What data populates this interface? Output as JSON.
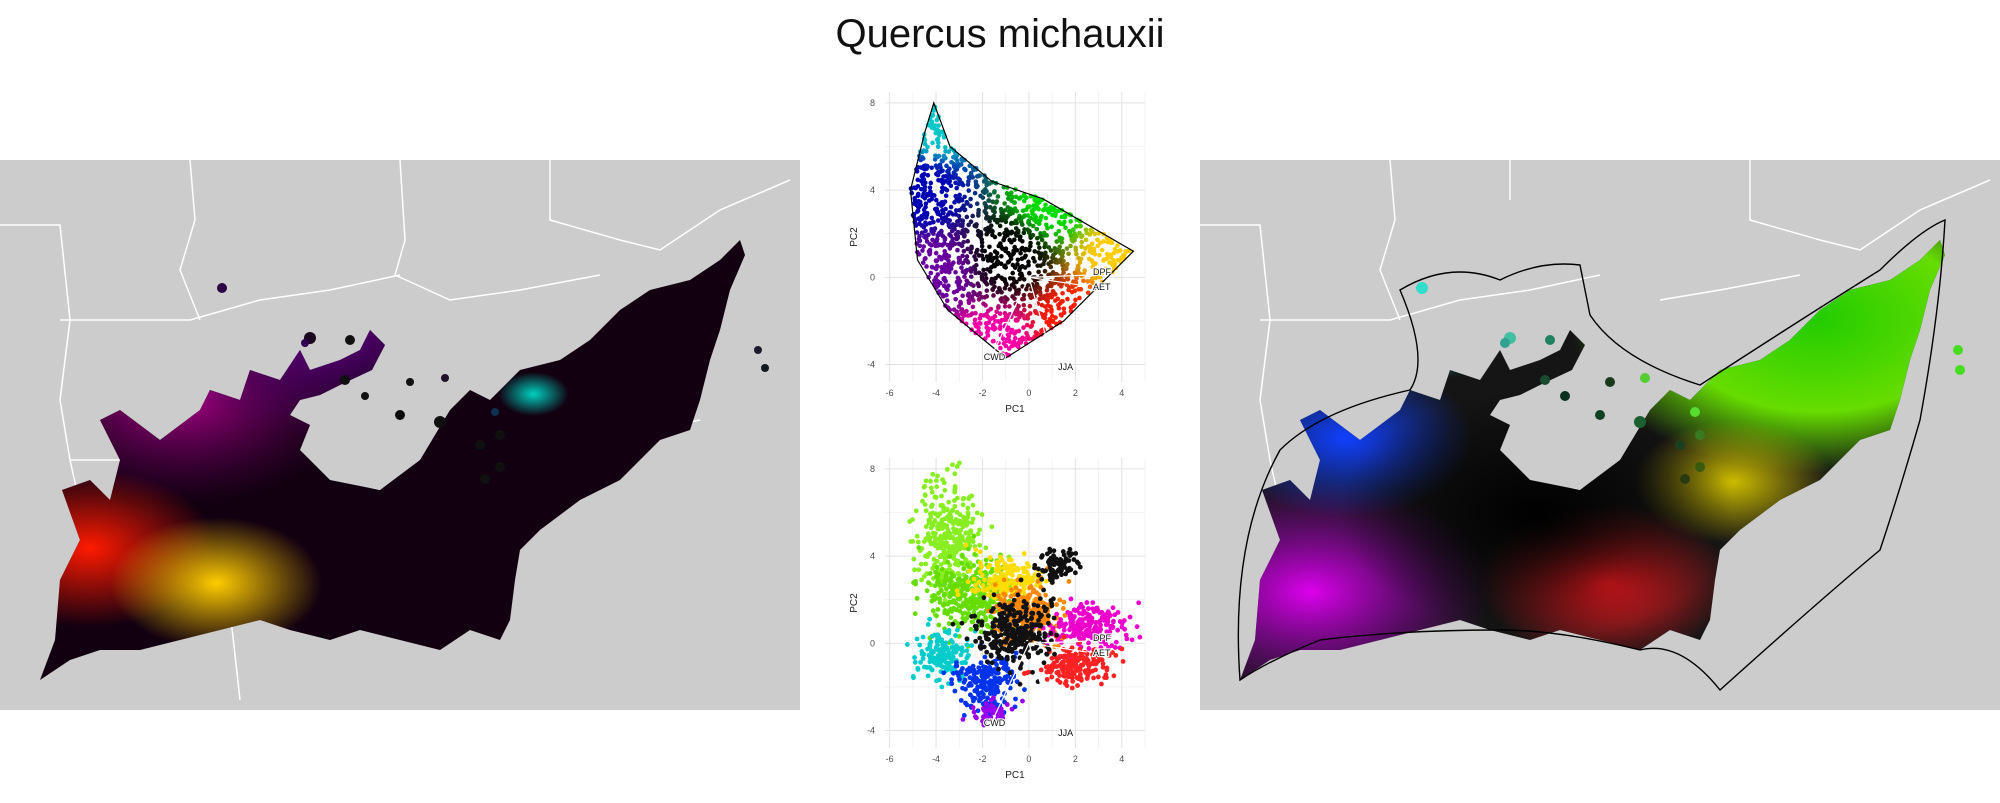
{
  "title": "Quercus michauxii",
  "colors": {
    "land": "#cccccc",
    "boundary": "#ffffff",
    "grid": "#ebebeb",
    "hull": "#000000"
  },
  "chart_data": [
    {
      "type": "scatter",
      "panel": "pca-top",
      "xlabel": "PC1",
      "ylabel": "PC2",
      "xlim": [
        -6.2,
        5.0
      ],
      "ylim": [
        -4.8,
        8.5
      ],
      "xticks": [
        -6,
        -4,
        -2,
        0,
        2,
        4
      ],
      "yticks": [
        -4,
        0,
        4,
        8
      ],
      "grid": true,
      "loadings": [
        {
          "label": "CWD",
          "x": -1.6,
          "y": -3.6
        },
        {
          "label": "JJA",
          "x": 1.0,
          "y": -3.7
        },
        {
          "label": "DPF",
          "x": 2.5,
          "y": 0.1
        },
        {
          "label": "AET",
          "x": 2.5,
          "y": -0.4
        }
      ],
      "hull": [
        [
          -4.1,
          8.0
        ],
        [
          -3.4,
          6.0
        ],
        [
          -1.6,
          4.4
        ],
        [
          0.6,
          3.6
        ],
        [
          4.5,
          1.2
        ],
        [
          1.5,
          -2.0
        ],
        [
          -1.0,
          -3.7
        ],
        [
          -3.5,
          -1.5
        ],
        [
          -4.8,
          0.8
        ],
        [
          -5.1,
          4.0
        ],
        [
          -4.5,
          6.6
        ]
      ],
      "series_color_mode": "2D color ramp over PC space",
      "anchor_colors": [
        {
          "x": -4.0,
          "y": 7.0,
          "color": "#00c8c8"
        },
        {
          "x": -4.6,
          "y": 4.0,
          "color": "#0000b4"
        },
        {
          "x": -4.0,
          "y": 0.2,
          "color": "#6a00a0"
        },
        {
          "x": -1.6,
          "y": -3.2,
          "color": "#ff00aa"
        },
        {
          "x": 2.0,
          "y": -2.0,
          "color": "#ff1a00"
        },
        {
          "x": 3.8,
          "y": 1.0,
          "color": "#ffcc00"
        },
        {
          "x": 1.0,
          "y": 3.4,
          "color": "#00dd00"
        },
        {
          "x": -0.8,
          "y": 1.0,
          "color": "#000000"
        }
      ]
    },
    {
      "type": "scatter",
      "panel": "pca-bottom",
      "xlabel": "PC1",
      "ylabel": "PC2",
      "xlim": [
        -6.2,
        5.0
      ],
      "ylim": [
        -4.8,
        8.5
      ],
      "xticks": [
        -6,
        -4,
        -2,
        0,
        2,
        4
      ],
      "yticks": [
        -4,
        0,
        4,
        8
      ],
      "grid": true,
      "loadings": [
        {
          "label": "CWD",
          "x": -1.6,
          "y": -3.6
        },
        {
          "label": "JJA",
          "x": 1.0,
          "y": -3.7
        },
        {
          "label": "DPF",
          "x": 2.5,
          "y": 0.1
        },
        {
          "label": "AET",
          "x": 2.5,
          "y": -0.4
        }
      ],
      "clusters": [
        {
          "cx": -3.5,
          "cy": 5.0,
          "rx": 1.4,
          "ry": 2.6,
          "color": "#88ee22"
        },
        {
          "cx": -2.5,
          "cy": 2.2,
          "rx": 1.8,
          "ry": 1.6,
          "color": "#66dd00"
        },
        {
          "cx": -1.0,
          "cy": 3.0,
          "rx": 1.6,
          "ry": 1.0,
          "color": "#ffdd00"
        },
        {
          "cx": 0.0,
          "cy": 1.5,
          "rx": 1.5,
          "ry": 1.3,
          "color": "#ff8800"
        },
        {
          "cx": 2.6,
          "cy": 0.8,
          "rx": 1.8,
          "ry": 1.0,
          "color": "#ee00cc"
        },
        {
          "cx": 2.0,
          "cy": -1.0,
          "rx": 1.6,
          "ry": 0.9,
          "color": "#ff2222"
        },
        {
          "cx": -3.6,
          "cy": -0.5,
          "rx": 1.2,
          "ry": 1.2,
          "color": "#00cccc"
        },
        {
          "cx": -1.8,
          "cy": -1.8,
          "rx": 1.4,
          "ry": 1.2,
          "color": "#0033ee"
        },
        {
          "cx": -1.6,
          "cy": -3.2,
          "rx": 0.8,
          "ry": 0.6,
          "color": "#9900ee"
        },
        {
          "cx": 1.2,
          "cy": 3.6,
          "rx": 1.0,
          "ry": 0.7,
          "color": "#111111"
        },
        {
          "cx": -0.6,
          "cy": 0.5,
          "rx": 1.6,
          "ry": 1.6,
          "color": "#111111"
        }
      ]
    }
  ],
  "maps": {
    "left": {
      "legend": []
    },
    "right": {
      "legend": []
    }
  }
}
